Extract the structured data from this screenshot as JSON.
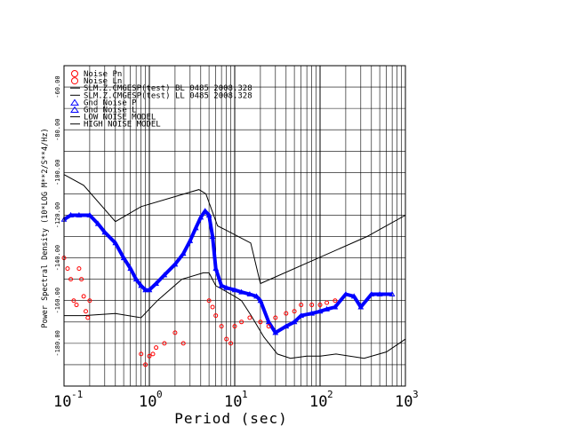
{
  "chart_data": {
    "type": "scatter",
    "title": "",
    "xlabel": "Period (sec)",
    "ylabel": "Power Spectral Density (10*LOG M**2/S**4/Hz)",
    "x_scale": "log",
    "xlim": [
      0.1,
      1000
    ],
    "ylim": [
      -200,
      -50
    ],
    "grid": true,
    "legend_position": "top-left",
    "x_ticks": [
      {
        "base": "10",
        "exp": "-1",
        "value": 0.1
      },
      {
        "base": "10",
        "exp": "0",
        "value": 1
      },
      {
        "base": "10",
        "exp": "1",
        "value": 10
      },
      {
        "base": "10",
        "exp": "2",
        "value": 100
      },
      {
        "base": "10",
        "exp": "3",
        "value": 1000
      }
    ],
    "y_ticks": [
      {
        "label": "-60.00",
        "value": -60
      },
      {
        "label": "-80.00",
        "value": -80
      },
      {
        "label": "-100.00",
        "value": -100
      },
      {
        "label": "-120.00",
        "value": -120
      },
      {
        "label": "-140.00",
        "value": -140
      },
      {
        "label": "-160.00",
        "value": -160
      },
      {
        "label": "-180.00",
        "value": -180
      }
    ],
    "legend": [
      {
        "label": "Noise Pn",
        "marker": "circle",
        "color": "#ff0000"
      },
      {
        "label": "Noise Ln",
        "marker": "circle",
        "color": "#ff0000"
      },
      {
        "label": "SLM.Z.CMGESP(test) BL 0485 2008.328",
        "marker": "line",
        "color": "#000000"
      },
      {
        "label": "SLM.Z.CMGESP(test) LL 0485 2008.328",
        "marker": "line",
        "color": "#000000"
      },
      {
        "label": "Gnd Noise P",
        "marker": "triangle",
        "color": "#0000ff"
      },
      {
        "label": "Gnd Noise L",
        "marker": "triangle",
        "color": "#0000ff"
      },
      {
        "label": "LOW NOISE MODEL",
        "marker": "line",
        "color": "#000000"
      },
      {
        "label": "HIGH NOISE MODEL",
        "marker": "line",
        "color": "#000000"
      }
    ],
    "series": [
      {
        "name": "Gnd Noise P",
        "color": "#0000ff",
        "marker": "triangle",
        "x": [
          0.1,
          0.12,
          0.15,
          0.2,
          0.25,
          0.3,
          0.4,
          0.5,
          0.6,
          0.7,
          0.8,
          0.9,
          1.0,
          1.2,
          1.5,
          2.0,
          2.5,
          3.0,
          3.5,
          4.0,
          4.5,
          5.0,
          5.5,
          6.0,
          7.0,
          8.0,
          10.0,
          12.0,
          15.0,
          18.0,
          20.0,
          25.0,
          30.0,
          40.0,
          50.0,
          60.0,
          80.0,
          100.0,
          120.0,
          150.0,
          200.0,
          250.0,
          300.0,
          400.0,
          500.0,
          700.0
        ],
        "y": [
          -122,
          -120,
          -120,
          -120,
          -124,
          -128,
          -133,
          -140,
          -145,
          -150,
          -153,
          -155,
          -155,
          -152,
          -148,
          -143,
          -138,
          -132,
          -126,
          -121,
          -118,
          -120,
          -130,
          -145,
          -153,
          -154,
          -155,
          -156,
          -157,
          -158,
          -160,
          -170,
          -175,
          -172,
          -170,
          -167,
          -166,
          -165,
          -164,
          -163,
          -157,
          -158,
          -163,
          -157,
          -157,
          -157
        ]
      },
      {
        "name": "Noise Pn",
        "color": "#ff0000",
        "marker": "circle",
        "x": [
          0.1,
          0.11,
          0.12,
          0.13,
          0.14,
          0.15,
          0.16,
          0.17,
          0.18,
          0.19,
          0.2,
          0.8,
          0.9,
          1.0,
          1.1,
          1.2,
          1.5,
          2.0,
          2.5,
          5.0,
          5.5,
          6.0,
          7.0,
          8.0,
          9.0,
          10.0,
          12.0,
          15.0,
          20.0,
          25.0,
          30.0,
          40.0,
          50.0,
          60.0,
          80.0,
          100.0,
          120.0,
          150.0
        ],
        "y": [
          -140,
          -145,
          -150,
          -160,
          -162,
          -145,
          -150,
          -158,
          -165,
          -168,
          -160,
          -185,
          -190,
          -186,
          -185,
          -182,
          -180,
          -175,
          -180,
          -160,
          -163,
          -167,
          -172,
          -178,
          -180,
          -172,
          -170,
          -168,
          -170,
          -172,
          -168,
          -166,
          -165,
          -162,
          -162,
          -162,
          -161,
          -160
        ]
      }
    ],
    "models": [
      {
        "name": "HIGH NOISE MODEL",
        "x": [
          0.1,
          0.17,
          0.4,
          0.8,
          3.8,
          4.6,
          6.3,
          7.9,
          15.4,
          20.0,
          354.8,
          1000.0
        ],
        "y": [
          -101,
          -106,
          -123,
          -116,
          -108,
          -110,
          -125,
          -127,
          -133,
          -152,
          -130,
          -120
        ]
      },
      {
        "name": "LOW NOISE MODEL",
        "x": [
          0.1,
          0.17,
          0.4,
          0.8,
          1.24,
          2.4,
          4.3,
          5.0,
          6.0,
          10.0,
          12.0,
          15.6,
          21.9,
          31.6,
          45.0,
          70.0,
          101.0,
          154.0,
          328.0,
          600.0,
          1000.0
        ],
        "y": [
          -167,
          -167,
          -166,
          -168,
          -160,
          -150,
          -147,
          -147,
          -153,
          -158,
          -160,
          -167,
          -177,
          -185,
          -187,
          -186,
          -186,
          -185,
          -187,
          -184,
          -178
        ]
      }
    ]
  }
}
